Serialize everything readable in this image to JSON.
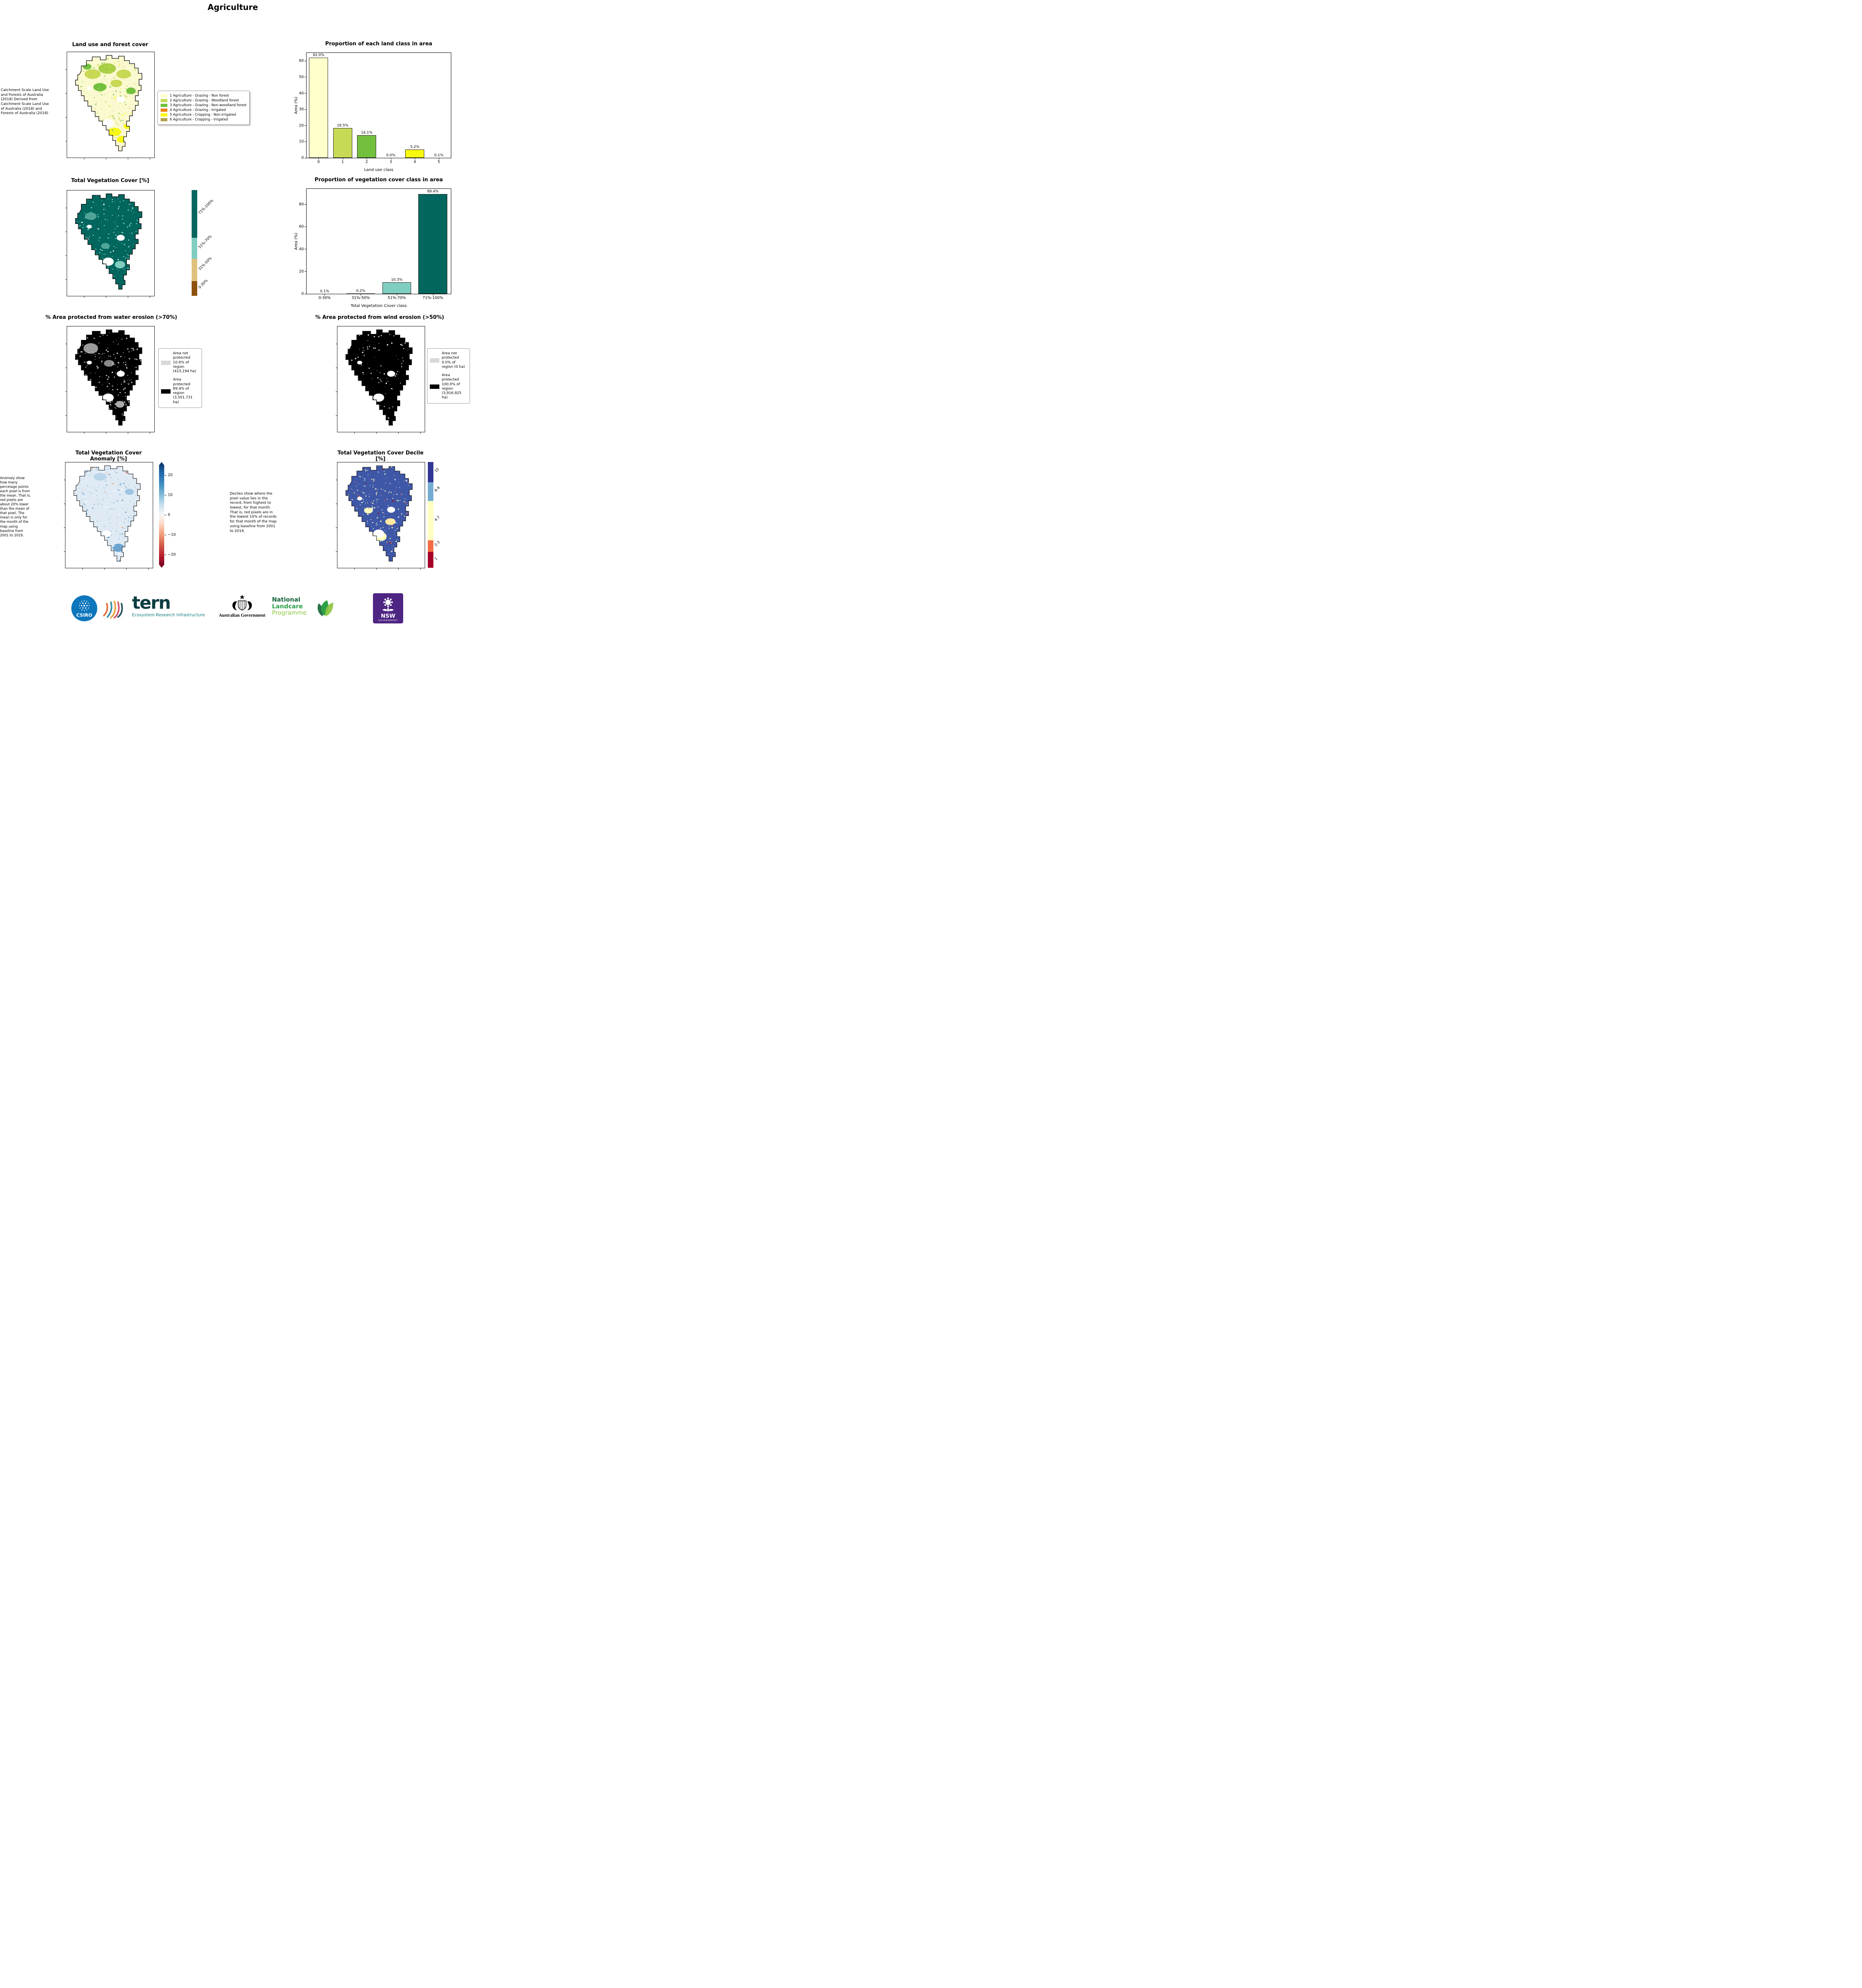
{
  "page": {
    "title": "Agriculture"
  },
  "land_use": {
    "title": "Land use and forest cover",
    "note": "Catchment Scale Land Use and Forests of Australia (2018) Derived from Catchment Scale Land Use of Australia (2018) and Forests of Australia (2018)",
    "legend": [
      {
        "label": "1 Agriculture - Grazing - Non forest",
        "color": "#ffffcc"
      },
      {
        "label": "2 Agriculture - Grazing - Woodland forest",
        "color": "#c7d955"
      },
      {
        "label": "3 Agriculture - Grazing - Non-woodland forest",
        "color": "#73c03f"
      },
      {
        "label": "4 Agriculture - Grazing - Irrigated",
        "color": "#f08318"
      },
      {
        "label": "5 Agriculture - Cropping - Non-irrigated",
        "color": "#f8f813"
      },
      {
        "label": "6 Agriculture - Cropping - Irrigated",
        "color": "#b5a34f"
      }
    ]
  },
  "veg_cover": {
    "title": "Total Vegetation Cover [%]",
    "colorbar": [
      {
        "label": "71%-100%",
        "color": "#01665e",
        "size": 45
      },
      {
        "label": "51%-70%",
        "color": "#80cdc1",
        "size": 20
      },
      {
        "label": "31%-50%",
        "color": "#dfc27d",
        "size": 21
      },
      {
        "label": "0-30%",
        "color": "#8c510a",
        "size": 14
      }
    ]
  },
  "water_erosion": {
    "title": "% Area protected from water erosion (>70%)",
    "legend": [
      {
        "label": "Area not protected 10.6% of region (415,194 ha)",
        "color": "#d9d9d9"
      },
      {
        "label": "Area protected 89.4% of region (3,501,731 ha)",
        "color": "#000000"
      }
    ]
  },
  "wind_erosion": {
    "title": "% Area protected from wind erosion (>50%)",
    "legend": [
      {
        "label": "Area not protected 0.0% of region (0 ha)",
        "color": "#d9d9d9"
      },
      {
        "label": "Area protected 100.0% of region (3,916,925 ha)",
        "color": "#000000"
      }
    ]
  },
  "anomaly": {
    "title": "Total Vegetation Cover Anomaly [%]",
    "note": "Anomaly show how many percetage points each pixel is from the mean. That is, red pixels are about 20% lower than the mean of that pixel. The mean is only for the month of the map using baseline from 2001 to 2019.",
    "colorbar_ticks": [
      "20",
      "10",
      "0",
      "−10",
      "−20"
    ]
  },
  "decile": {
    "title": "Total Vegetation Cover Decile [%]",
    "note": "Deciles show where the pixel value lies in the record, from highest to lowest, for that month. That is, red pixels are in the lowest 10% of records for that month of the map using baseline from 2001 to 2019.",
    "colorbar": [
      {
        "label": "10",
        "color": "#313695",
        "size": 19
      },
      {
        "label": "8-9",
        "color": "#74add1",
        "size": 18
      },
      {
        "label": "4-7",
        "color": "#ffffbf",
        "size": 37
      },
      {
        "label": "2-3",
        "color": "#f46d43",
        "size": 11
      },
      {
        "label": "1",
        "color": "#a50026",
        "size": 15
      }
    ]
  },
  "chart_data": [
    {
      "type": "bar",
      "title": "Proportion of each land class in area",
      "categories": [
        "0",
        "1",
        "2",
        "3",
        "4",
        "5"
      ],
      "values": [
        62.0,
        18.5,
        14.1,
        0.0,
        5.2,
        0.1
      ],
      "bar_labels": [
        "62.0%",
        "18.5%",
        "14.1%",
        "0.0%",
        "5.2%",
        "0.1%"
      ],
      "bar_colors": [
        "#ffffcc",
        "#c7d955",
        "#73c03f",
        "#f08318",
        "#f8f813",
        "#b5a34f"
      ],
      "xlabel": "Land use class",
      "ylabel": "Area (%)",
      "ylim": [
        0,
        65
      ],
      "yticks": [
        0,
        10,
        20,
        30,
        40,
        50,
        60
      ],
      "grid": false,
      "legend_position": "none"
    },
    {
      "type": "bar",
      "title": "Proportion of vegetation cover class in area",
      "categories": [
        "0-30%",
        "31%-50%",
        "51%-70%",
        "71%-100%"
      ],
      "values": [
        0.1,
        0.2,
        10.3,
        89.4
      ],
      "bar_labels": [
        "0.1%",
        "0.2%",
        "10.3%",
        "89.4%"
      ],
      "bar_colors": [
        "#8c510a",
        "#dfc27d",
        "#80cdc1",
        "#01665e"
      ],
      "xlabel": "Total Vegetation Cover class",
      "ylabel": "Area (%)",
      "ylim": [
        0,
        94
      ],
      "yticks": [
        0,
        20,
        40,
        60,
        80
      ],
      "grid": false,
      "legend_position": "none"
    }
  ],
  "footer": {
    "csiro": {
      "label": "CSIRO",
      "color": "#0e76bc"
    },
    "tern": {
      "wordmark": "tern",
      "subtitle": "Ecosystem Research Infrastructure"
    },
    "aus_gov": {
      "label": "Australian Government"
    },
    "landcare": {
      "line1": "National",
      "line2": "Landcare",
      "line3": "Programme",
      "color1": "#156339",
      "color2": "#2ba148",
      "color3": "#8dc63f"
    },
    "nsw": {
      "label": "NSW",
      "sublabel": "GOVERNMENT",
      "bg": "#4e2583"
    }
  }
}
